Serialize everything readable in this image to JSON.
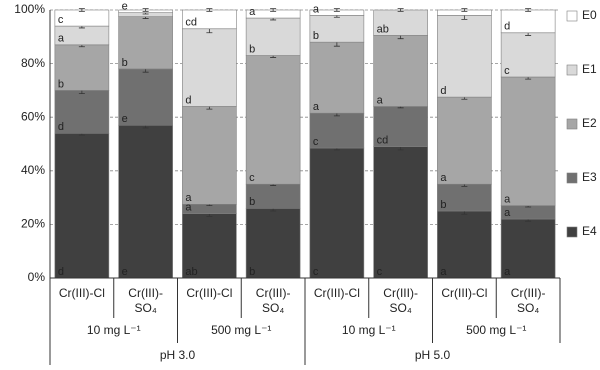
{
  "chart_data": {
    "type": "stacked-bar",
    "categories": [
      [
        "Cr(III)-Cl"
      ],
      [
        "Cr(III)-",
        "SO₄"
      ],
      [
        "Cr(III)-Cl"
      ],
      [
        "Cr(III)-",
        "SO₄"
      ],
      [
        "Cr(III)-Cl"
      ],
      [
        "Cr(III)-",
        "SO₄"
      ],
      [
        "Cr(III)-Cl"
      ],
      [
        "Cr(III)-",
        "SO₄"
      ]
    ],
    "groups": [
      {
        "label": "10 mg L⁻¹",
        "span": 2
      },
      {
        "label": "500 mg L⁻¹",
        "span": 2
      },
      {
        "label": "10 mg L⁻¹",
        "span": 2
      },
      {
        "label": "500 mg L⁻¹",
        "span": 2
      }
    ],
    "supergroups": [
      {
        "label": "pH 3.0",
        "span": 4
      },
      {
        "label": "pH 5.0",
        "span": 4
      }
    ],
    "series": [
      {
        "name": "E4",
        "color": "#404040",
        "values": [
          54,
          57,
          24,
          26,
          48.5,
          49,
          25,
          22
        ],
        "errors": [
          0.7,
          1,
          1,
          1,
          0.7,
          1.2,
          1.2,
          0.8
        ],
        "labels": [
          "d",
          "e",
          "ab",
          "b",
          "c",
          "c",
          "a",
          "a"
        ]
      },
      {
        "name": "E3",
        "color": "#707070",
        "values": [
          16,
          21,
          3.5,
          9,
          13,
          15,
          10,
          5
        ],
        "errors": [
          1.2,
          1.2,
          0.5,
          0.5,
          1,
          0.5,
          0.8,
          0.5
        ],
        "labels": [
          "d",
          "e",
          "a",
          "b",
          "c",
          "cd",
          "b",
          "a"
        ]
      },
      {
        "name": "E2",
        "color": "#a6a6a6",
        "values": [
          17,
          19.5,
          36.5,
          48,
          26.5,
          26.5,
          32.5,
          48
        ],
        "errors": [
          0.7,
          0.7,
          1,
          0.7,
          1.5,
          1.2,
          0.8,
          0.8
        ],
        "labels": [
          "b",
          "b",
          "a",
          "c",
          "a",
          "a",
          "a",
          "a"
        ]
      },
      {
        "name": "E1",
        "color": "#d9d9d9",
        "values": [
          7,
          1.5,
          29,
          14,
          10,
          9.5,
          30.5,
          16.5
        ],
        "errors": [
          0.7,
          0.5,
          1.5,
          0.7,
          0.7,
          0.5,
          1.5,
          1
        ],
        "labels": [
          "a",
          null,
          "d",
          "b",
          "b",
          "ab",
          "d",
          "c"
        ]
      },
      {
        "name": "E0",
        "color": "#ffffff",
        "values": [
          6,
          1,
          7,
          3,
          2,
          0,
          2,
          8.5
        ],
        "errors": [
          0.5,
          0.5,
          0.5,
          0.5,
          0.5,
          0,
          0.5,
          0.5
        ],
        "labels": [
          "c",
          "e",
          "cd",
          "a",
          "a",
          null,
          null,
          "d"
        ]
      }
    ],
    "ylim": [
      0,
      100
    ],
    "yticks": [
      {
        "value": 0,
        "label": "0%"
      },
      {
        "value": 20,
        "label": "20%"
      },
      {
        "value": 40,
        "label": "40%"
      },
      {
        "value": 60,
        "label": "60%"
      },
      {
        "value": 80,
        "label": "80%"
      },
      {
        "value": 100,
        "label": "100%"
      }
    ],
    "grid": true,
    "legend": "right"
  }
}
